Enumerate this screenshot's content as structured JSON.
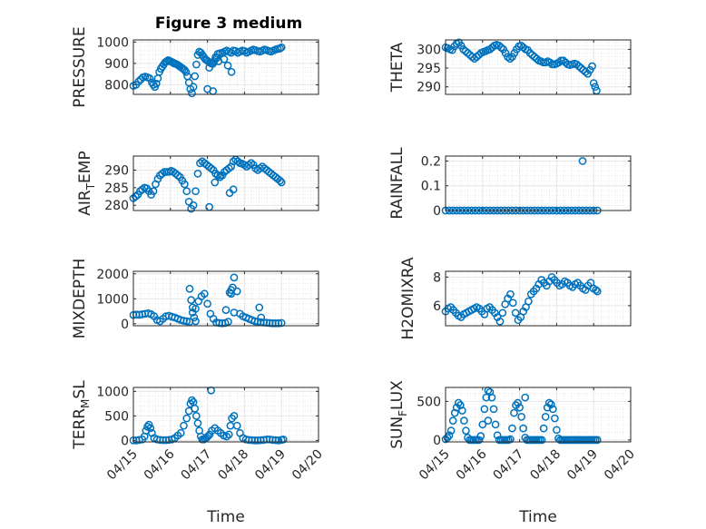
{
  "figure_title": "Figure 3 medium",
  "x_tick_labels": [
    "04/15",
    "04/16",
    "04/17",
    "04/18",
    "04/19",
    "04/20"
  ],
  "x_axis_label": "Time",
  "colors": {
    "marker": "#0072BD",
    "grid": "#e6e6e6",
    "axis": "#262626",
    "background": "#ffffff"
  },
  "chart_data": [
    {
      "type": "scatter",
      "id": "pressure",
      "ylabel": "PRESSURE",
      "ylim": [
        755,
        1010
      ],
      "yticks": [
        800,
        900,
        1000
      ],
      "xlim": [
        0,
        5
      ],
      "grid": true,
      "x": [
        0.0,
        0.07,
        0.14,
        0.2,
        0.26,
        0.32,
        0.38,
        0.44,
        0.5,
        0.54,
        0.58,
        0.62,
        0.66,
        0.7,
        0.74,
        0.78,
        0.82,
        0.86,
        0.9,
        0.94,
        0.98,
        1.02,
        1.06,
        1.1,
        1.14,
        1.18,
        1.22,
        1.26,
        1.3,
        1.34,
        1.38,
        1.42,
        1.46,
        1.5,
        1.54,
        1.58,
        1.62,
        1.66,
        1.7,
        1.74,
        1.78,
        1.82,
        1.86,
        1.9,
        1.94,
        1.98,
        2.02,
        2.06,
        2.1,
        2.14,
        2.18,
        2.22,
        2.28,
        2.34,
        2.4,
        2.46,
        2.52,
        2.58,
        2.64,
        2.7,
        2.76,
        2.82,
        2.88,
        2.94,
        3.0,
        3.06,
        3.12,
        3.18,
        3.24,
        3.3,
        3.36,
        3.42,
        3.48,
        3.54,
        3.6,
        3.66,
        3.72,
        3.78,
        3.84,
        3.9,
        3.96,
        4.0,
        2.0,
        2.15,
        2.3,
        2.45,
        2.55,
        2.65,
        2.05,
        2.15,
        2.25
      ],
      "y": [
        795,
        800,
        815,
        825,
        835,
        838,
        835,
        830,
        810,
        800,
        790,
        805,
        830,
        860,
        875,
        885,
        895,
        905,
        910,
        915,
        912,
        908,
        905,
        900,
        898,
        895,
        890,
        885,
        880,
        875,
        870,
        860,
        840,
        810,
        780,
        760,
        790,
        840,
        895,
        940,
        955,
        950,
        940,
        930,
        920,
        915,
        910,
        905,
        900,
        898,
        910,
        930,
        945,
        948,
        950,
        955,
        960,
        955,
        950,
        960,
        958,
        950,
        955,
        960,
        958,
        950,
        955,
        960,
        965,
        962,
        958,
        955,
        960,
        965,
        962,
        958,
        955,
        960,
        965,
        968,
        970,
        975,
        780,
        770,
        910,
        920,
        890,
        860,
        880,
        900,
        925
      ]
    },
    {
      "type": "scatter",
      "id": "theta",
      "ylabel": "THETA",
      "ylim": [
        288,
        302.5
      ],
      "yticks": [
        290,
        295,
        300
      ],
      "xlim": [
        0,
        5
      ],
      "grid": true,
      "x": [
        0.0,
        0.06,
        0.12,
        0.18,
        0.24,
        0.3,
        0.36,
        0.42,
        0.48,
        0.54,
        0.6,
        0.66,
        0.72,
        0.78,
        0.84,
        0.9,
        0.96,
        1.02,
        1.08,
        1.14,
        1.2,
        1.26,
        1.32,
        1.38,
        1.44,
        1.5,
        1.56,
        1.62,
        1.68,
        1.74,
        1.8,
        1.86,
        1.92,
        1.98,
        2.04,
        2.1,
        2.16,
        2.22,
        2.28,
        2.34,
        2.4,
        2.46,
        2.52,
        2.58,
        2.64,
        2.7,
        2.76,
        2.82,
        2.88,
        2.94,
        3.0,
        3.06,
        3.12,
        3.18,
        3.24,
        3.3,
        3.36,
        3.42,
        3.48,
        3.54,
        3.6,
        3.66,
        3.72,
        3.78,
        3.84,
        3.9,
        3.96,
        4.0,
        4.04,
        4.08
      ],
      "y": [
        300.5,
        300.3,
        300.0,
        299.8,
        300.8,
        301.5,
        301.8,
        301.0,
        300.0,
        299.5,
        299.0,
        298.5,
        298.0,
        297.5,
        298.0,
        298.5,
        299.0,
        299.3,
        299.5,
        299.8,
        300.0,
        300.5,
        301.0,
        301.2,
        301.0,
        300.5,
        300.0,
        299.0,
        298.0,
        297.5,
        298.0,
        299.0,
        300.0,
        300.8,
        301.0,
        300.5,
        300.0,
        299.8,
        299.0,
        298.5,
        298.0,
        297.5,
        297.0,
        296.8,
        296.5,
        296.5,
        296.8,
        296.5,
        296.0,
        296.0,
        296.2,
        296.5,
        297.0,
        297.0,
        296.5,
        296.0,
        295.8,
        296.0,
        296.2,
        296.0,
        295.5,
        295.0,
        294.5,
        294.0,
        293.5,
        294.5,
        295.5,
        291.0,
        290.0,
        289.0
      ]
    },
    {
      "type": "scatter",
      "id": "air-temp",
      "ylabel": "AIR_TEMP",
      "ylim": [
        278.5,
        294
      ],
      "yticks": [
        280,
        285,
        290
      ],
      "xlim": [
        0,
        5
      ],
      "grid": true,
      "x": [
        0.0,
        0.06,
        0.12,
        0.18,
        0.24,
        0.3,
        0.36,
        0.42,
        0.48,
        0.54,
        0.6,
        0.66,
        0.72,
        0.78,
        0.84,
        0.9,
        0.96,
        1.02,
        1.08,
        1.14,
        1.2,
        1.26,
        1.32,
        1.38,
        1.44,
        1.5,
        1.56,
        1.62,
        1.68,
        1.74,
        1.8,
        1.86,
        1.92,
        1.98,
        2.04,
        2.1,
        2.16,
        2.22,
        2.28,
        2.34,
        2.4,
        2.46,
        2.52,
        2.58,
        2.64,
        2.7,
        2.76,
        2.82,
        2.88,
        2.94,
        3.0,
        3.06,
        3.12,
        3.18,
        3.24,
        3.3,
        3.36,
        3.42,
        3.48,
        3.54,
        3.6,
        3.66,
        3.72,
        3.78,
        3.84,
        3.9,
        3.96,
        4.0,
        2.05,
        2.2,
        2.35,
        2.6,
        2.7
      ],
      "y": [
        282.0,
        282.5,
        283.0,
        284.0,
        284.5,
        285.0,
        284.8,
        284.0,
        283.0,
        284.0,
        286.0,
        287.5,
        288.5,
        289.0,
        289.5,
        289.5,
        289.5,
        289.8,
        289.5,
        289.0,
        288.5,
        288.0,
        287.0,
        286.0,
        284.0,
        281.0,
        279.0,
        280.0,
        284.0,
        289.0,
        292.0,
        292.5,
        292.0,
        291.5,
        291.0,
        290.5,
        290.0,
        289.0,
        288.5,
        288.0,
        288.5,
        289.5,
        290.0,
        290.5,
        291.0,
        292.5,
        293.0,
        292.5,
        292.0,
        291.8,
        291.5,
        291.0,
        291.5,
        292.0,
        291.5,
        290.5,
        290.0,
        290.5,
        291.0,
        290.5,
        290.0,
        289.5,
        289.0,
        288.5,
        288.0,
        287.5,
        287.0,
        286.5,
        279.5,
        286.5,
        288.5,
        283.5,
        284.5
      ]
    },
    {
      "type": "scatter",
      "id": "rainfall",
      "ylabel": "RAINFALL",
      "ylim": [
        0,
        0.22
      ],
      "yticks": [
        0,
        0.1,
        0.2
      ],
      "xlim": [
        0,
        5
      ],
      "grid": true,
      "x": [
        0.0,
        0.1,
        0.2,
        0.3,
        0.4,
        0.5,
        0.6,
        0.7,
        0.8,
        0.9,
        1.0,
        1.1,
        1.2,
        1.3,
        1.4,
        1.5,
        1.6,
        1.7,
        1.8,
        1.9,
        2.0,
        2.1,
        2.2,
        2.3,
        2.4,
        2.5,
        2.6,
        2.7,
        2.8,
        2.9,
        3.0,
        3.1,
        3.2,
        3.3,
        3.4,
        3.5,
        3.6,
        3.7,
        3.8,
        3.9,
        4.0,
        4.1,
        3.7
      ],
      "y": [
        0,
        0,
        0,
        0,
        0,
        0,
        0,
        0,
        0,
        0,
        0,
        0,
        0,
        0,
        0,
        0,
        0,
        0,
        0,
        0,
        0,
        0,
        0,
        0,
        0,
        0,
        0,
        0,
        0,
        0,
        0,
        0,
        0,
        0,
        0,
        0,
        0,
        0,
        0,
        0,
        0,
        0,
        0.2
      ]
    },
    {
      "type": "scatter",
      "id": "mixdepth",
      "ylabel": "MIXDEPTH",
      "ylim": [
        -80,
        2100
      ],
      "yticks": [
        0,
        1000,
        2000
      ],
      "xlim": [
        0,
        5
      ],
      "grid": true,
      "x": [
        0.0,
        0.08,
        0.16,
        0.24,
        0.32,
        0.4,
        0.48,
        0.56,
        0.64,
        0.72,
        0.8,
        0.88,
        0.96,
        1.04,
        1.12,
        1.2,
        1.28,
        1.36,
        1.44,
        1.52,
        1.6,
        1.68,
        1.76,
        1.84,
        1.92,
        2.0,
        2.08,
        2.16,
        2.24,
        2.32,
        2.4,
        2.48,
        2.56,
        2.64,
        2.72,
        2.8,
        2.88,
        2.96,
        3.04,
        3.12,
        3.2,
        3.28,
        3.36,
        3.44,
        3.52,
        3.6,
        3.68,
        3.76,
        3.84,
        3.92,
        4.0,
        1.52,
        1.56,
        1.6,
        1.64,
        1.68,
        2.5,
        2.6,
        2.64,
        2.68,
        2.72,
        3.4,
        3.45
      ],
      "y": [
        350,
        370,
        360,
        380,
        400,
        420,
        380,
        300,
        150,
        100,
        200,
        300,
        320,
        280,
        250,
        200,
        150,
        120,
        100,
        80,
        450,
        600,
        900,
        1100,
        1200,
        800,
        400,
        200,
        50,
        30,
        20,
        30,
        80,
        1200,
        1850,
        1300,
        400,
        300,
        250,
        200,
        150,
        100,
        80,
        60,
        50,
        40,
        30,
        20,
        20,
        20,
        30,
        1400,
        950,
        650,
        250,
        100,
        550,
        1250,
        1350,
        1450,
        450,
        650,
        250
      ]
    },
    {
      "type": "scatter",
      "id": "h2omixra",
      "ylabel": "H2OMIXRA",
      "ylim": [
        4.6,
        8.4
      ],
      "yticks": [
        6,
        8
      ],
      "xlim": [
        0,
        5
      ],
      "grid": true,
      "x": [
        0.0,
        0.07,
        0.14,
        0.21,
        0.28,
        0.35,
        0.42,
        0.49,
        0.56,
        0.63,
        0.7,
        0.77,
        0.84,
        0.91,
        0.98,
        1.05,
        1.12,
        1.19,
        1.26,
        1.33,
        1.4,
        1.47,
        1.54,
        1.61,
        1.68,
        1.75,
        1.82,
        1.89,
        1.96,
        2.03,
        2.1,
        2.17,
        2.24,
        2.31,
        2.38,
        2.45,
        2.52,
        2.59,
        2.66,
        2.73,
        2.8,
        2.87,
        2.94,
        3.01,
        3.08,
        3.15,
        3.22,
        3.29,
        3.36,
        3.43,
        3.5,
        3.57,
        3.64,
        3.71,
        3.78,
        3.85,
        3.92,
        3.99,
        4.06,
        4.1
      ],
      "y": [
        5.6,
        5.8,
        5.9,
        5.7,
        5.5,
        5.3,
        5.2,
        5.4,
        5.5,
        5.6,
        5.7,
        5.8,
        5.9,
        5.8,
        5.6,
        5.4,
        5.8,
        5.9,
        5.7,
        5.5,
        5.2,
        4.9,
        5.5,
        6.1,
        6.5,
        6.8,
        6.2,
        5.5,
        5.0,
        5.2,
        5.6,
        5.9,
        6.3,
        6.8,
        7.0,
        7.2,
        7.5,
        7.8,
        7.6,
        7.4,
        7.7,
        8.0,
        7.8,
        7.6,
        7.4,
        7.5,
        7.7,
        7.6,
        7.4,
        7.3,
        7.5,
        7.6,
        7.4,
        7.2,
        7.1,
        7.4,
        7.6,
        7.2,
        7.1,
        7.0
      ]
    },
    {
      "type": "scatter",
      "id": "terr-msl",
      "ylabel": "TERR_MSL",
      "ylim": [
        -30,
        1080
      ],
      "yticks": [
        0,
        500,
        1000
      ],
      "xlim": [
        0,
        5
      ],
      "grid": true,
      "x": [
        0.0,
        0.08,
        0.16,
        0.24,
        0.3,
        0.34,
        0.38,
        0.42,
        0.46,
        0.5,
        0.56,
        0.64,
        0.72,
        0.8,
        0.88,
        0.96,
        1.04,
        1.12,
        1.2,
        1.28,
        1.36,
        1.44,
        1.5,
        1.54,
        1.58,
        1.62,
        1.66,
        1.7,
        1.74,
        1.78,
        1.82,
        1.86,
        1.9,
        1.94,
        1.98,
        2.02,
        2.06,
        2.12,
        2.2,
        2.28,
        2.36,
        2.44,
        2.52,
        2.58,
        2.62,
        2.66,
        2.72,
        2.8,
        2.88,
        2.96,
        3.04,
        3.12,
        3.2,
        3.28,
        3.36,
        3.44,
        3.52,
        3.6,
        3.68,
        3.76,
        3.84,
        3.92,
        4.0,
        4.05,
        2.1
      ],
      "y": [
        0,
        0,
        10,
        20,
        80,
        200,
        280,
        320,
        250,
        150,
        50,
        20,
        10,
        5,
        5,
        10,
        20,
        50,
        100,
        150,
        300,
        450,
        600,
        750,
        820,
        780,
        650,
        500,
        350,
        200,
        80,
        20,
        20,
        40,
        60,
        90,
        120,
        200,
        250,
        200,
        150,
        100,
        80,
        120,
        300,
        450,
        500,
        300,
        150,
        50,
        20,
        10,
        5,
        0,
        0,
        5,
        10,
        20,
        20,
        10,
        5,
        0,
        10,
        20,
        1020
      ]
    },
    {
      "type": "scatter",
      "id": "sun-flux",
      "ylabel": "SUN_FLUX",
      "ylim": [
        -25,
        680
      ],
      "yticks": [
        0,
        500
      ],
      "xlim": [
        0,
        5
      ],
      "grid": true,
      "x": [
        0.0,
        0.05,
        0.1,
        0.15,
        0.2,
        0.25,
        0.3,
        0.35,
        0.4,
        0.45,
        0.5,
        0.55,
        0.6,
        0.65,
        0.7,
        0.75,
        0.8,
        0.85,
        0.9,
        0.95,
        1.0,
        1.05,
        1.1,
        1.15,
        1.2,
        1.25,
        1.3,
        1.35,
        1.4,
        1.45,
        1.5,
        1.55,
        1.6,
        1.65,
        1.7,
        1.75,
        1.8,
        1.85,
        1.9,
        1.95,
        2.0,
        2.05,
        2.1,
        2.15,
        2.2,
        2.25,
        2.3,
        2.35,
        2.4,
        2.45,
        2.5,
        2.55,
        2.6,
        2.65,
        2.7,
        2.75,
        2.8,
        2.85,
        2.9,
        2.95,
        3.0,
        3.05,
        3.1,
        3.15,
        3.2,
        3.25,
        3.3,
        3.35,
        3.4,
        3.45,
        3.5,
        3.55,
        3.6,
        3.65,
        3.7,
        3.75,
        3.8,
        3.85,
        3.9,
        3.95,
        4.0,
        4.05,
        4.1,
        1.15,
        2.15
      ],
      "y": [
        10,
        30,
        60,
        120,
        250,
        350,
        420,
        480,
        450,
        380,
        250,
        120,
        30,
        0,
        0,
        0,
        0,
        0,
        0,
        50,
        200,
        400,
        550,
        640,
        620,
        550,
        400,
        200,
        60,
        0,
        0,
        0,
        0,
        0,
        0,
        10,
        150,
        350,
        450,
        480,
        420,
        300,
        150,
        30,
        0,
        0,
        0,
        0,
        0,
        0,
        0,
        0,
        0,
        150,
        300,
        420,
        480,
        460,
        400,
        280,
        130,
        20,
        0,
        0,
        0,
        0,
        0,
        0,
        0,
        0,
        0,
        0,
        0,
        0,
        0,
        0,
        0,
        0,
        0,
        0,
        0,
        0,
        0,
        250,
        550
      ]
    }
  ]
}
